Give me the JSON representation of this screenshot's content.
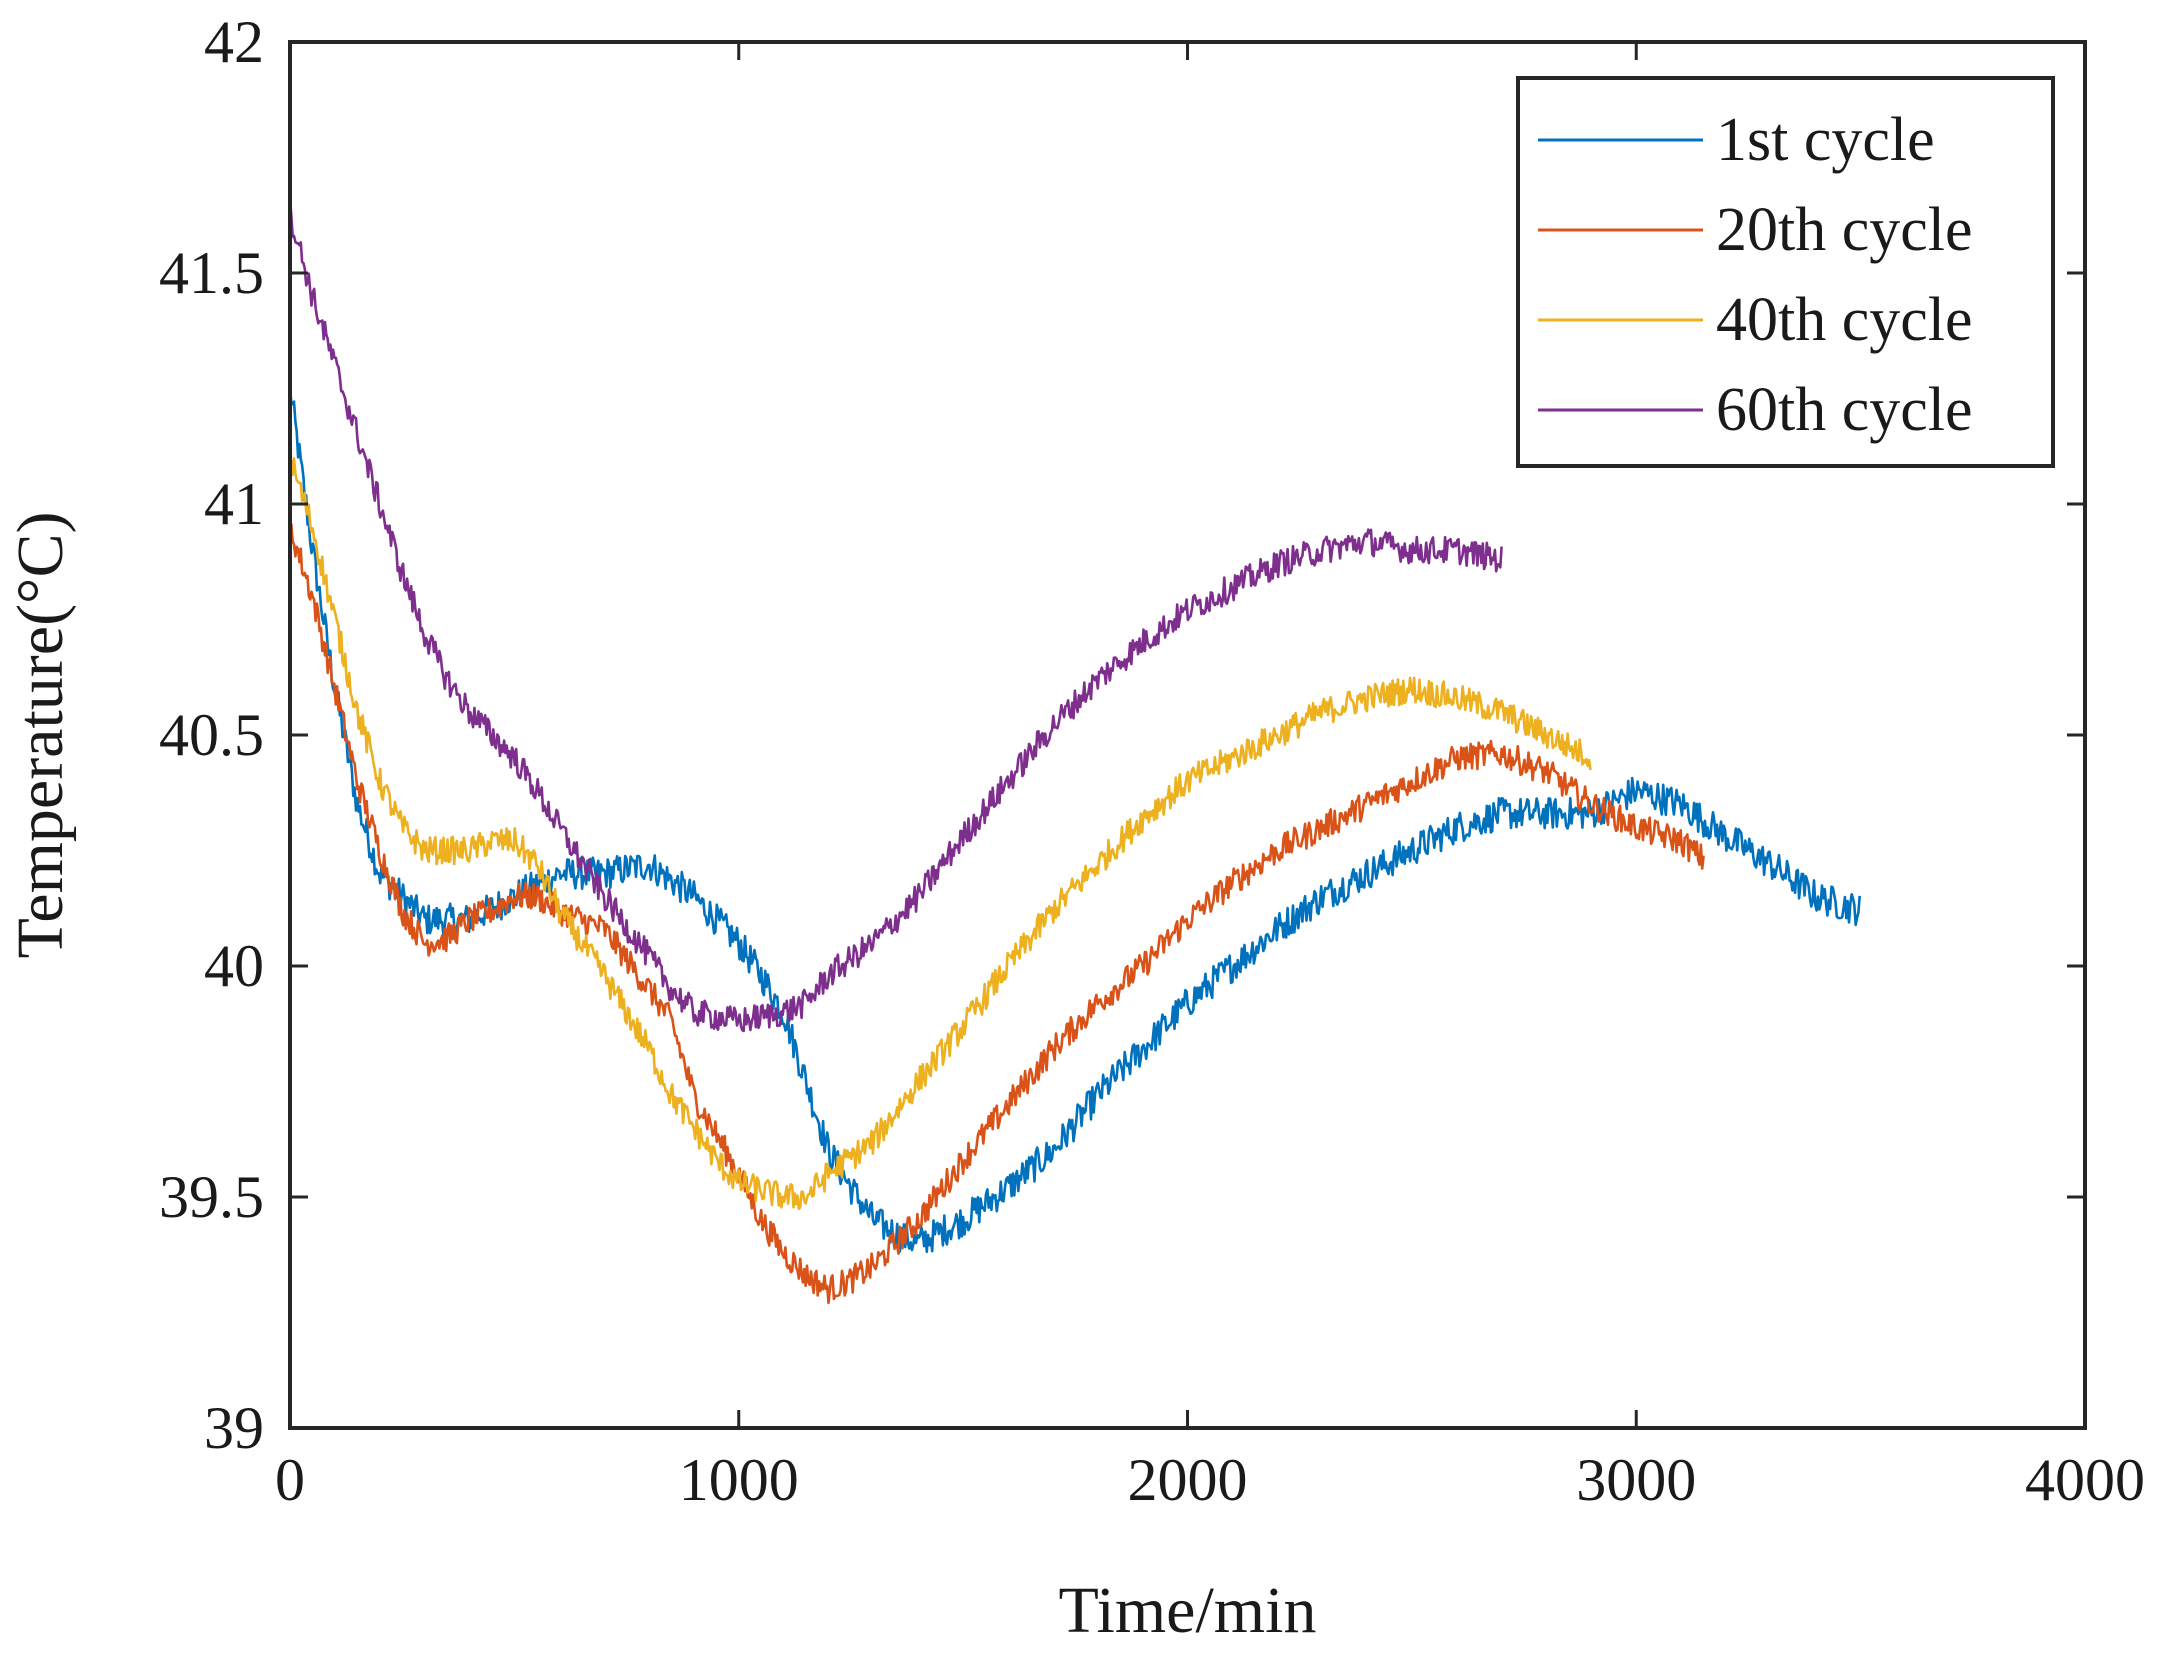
{
  "chart_data": {
    "type": "line",
    "title": "",
    "xlabel": "Time/min",
    "ylabel": "Temperature(°C)",
    "xlim": [
      0,
      4000
    ],
    "ylim": [
      39,
      42
    ],
    "xticks": [
      0,
      1000,
      2000,
      3000,
      4000
    ],
    "yticks": [
      39,
      39.5,
      40,
      40.5,
      41,
      41.5,
      42
    ],
    "xtick_labels": [
      "0",
      "1000",
      "2000",
      "3000",
      "4000"
    ],
    "ytick_labels": [
      "39",
      "39.5",
      "40",
      "40.5",
      "41",
      "41.5",
      "42"
    ],
    "grid": false,
    "legend_position": "top-right",
    "series": [
      {
        "name": "1st cycle",
        "color": "#0072BD",
        "noise": 0.035,
        "points": [
          [
            0,
            41.25
          ],
          [
            50,
            40.9
          ],
          [
            100,
            40.6
          ],
          [
            150,
            40.35
          ],
          [
            200,
            40.2
          ],
          [
            300,
            40.1
          ],
          [
            400,
            40.1
          ],
          [
            500,
            40.15
          ],
          [
            600,
            40.2
          ],
          [
            700,
            40.2
          ],
          [
            800,
            40.22
          ],
          [
            900,
            40.15
          ],
          [
            1000,
            40.05
          ],
          [
            1050,
            39.98
          ],
          [
            1100,
            39.9
          ],
          [
            1150,
            39.75
          ],
          [
            1200,
            39.6
          ],
          [
            1250,
            39.52
          ],
          [
            1300,
            39.45
          ],
          [
            1350,
            39.42
          ],
          [
            1400,
            39.4
          ],
          [
            1500,
            39.45
          ],
          [
            1600,
            39.52
          ],
          [
            1700,
            39.6
          ],
          [
            1800,
            39.72
          ],
          [
            1900,
            39.82
          ],
          [
            2000,
            39.92
          ],
          [
            2100,
            40.0
          ],
          [
            2200,
            40.08
          ],
          [
            2300,
            40.15
          ],
          [
            2400,
            40.2
          ],
          [
            2500,
            40.25
          ],
          [
            2600,
            40.3
          ],
          [
            2700,
            40.33
          ],
          [
            2800,
            40.33
          ],
          [
            2900,
            40.33
          ],
          [
            3000,
            40.38
          ],
          [
            3100,
            40.35
          ],
          [
            3200,
            40.28
          ],
          [
            3300,
            40.22
          ],
          [
            3400,
            40.15
          ],
          [
            3500,
            40.12
          ]
        ]
      },
      {
        "name": "20th cycle",
        "color": "#D95319",
        "noise": 0.03,
        "points": [
          [
            0,
            40.95
          ],
          [
            50,
            40.8
          ],
          [
            100,
            40.6
          ],
          [
            150,
            40.4
          ],
          [
            200,
            40.25
          ],
          [
            250,
            40.12
          ],
          [
            300,
            40.05
          ],
          [
            350,
            40.06
          ],
          [
            400,
            40.1
          ],
          [
            450,
            40.12
          ],
          [
            500,
            40.15
          ],
          [
            550,
            40.15
          ],
          [
            600,
            40.12
          ],
          [
            700,
            40.08
          ],
          [
            800,
            39.95
          ],
          [
            850,
            39.88
          ],
          [
            900,
            39.72
          ],
          [
            1000,
            39.55
          ],
          [
            1050,
            39.45
          ],
          [
            1100,
            39.38
          ],
          [
            1150,
            39.33
          ],
          [
            1200,
            39.3
          ],
          [
            1250,
            39.32
          ],
          [
            1300,
            39.35
          ],
          [
            1400,
            39.45
          ],
          [
            1500,
            39.58
          ],
          [
            1600,
            39.7
          ],
          [
            1700,
            39.82
          ],
          [
            1800,
            39.92
          ],
          [
            1900,
            40.0
          ],
          [
            2000,
            40.1
          ],
          [
            2100,
            40.18
          ],
          [
            2200,
            40.25
          ],
          [
            2300,
            40.3
          ],
          [
            2400,
            40.35
          ],
          [
            2500,
            40.4
          ],
          [
            2600,
            40.45
          ],
          [
            2700,
            40.46
          ],
          [
            2800,
            40.42
          ],
          [
            2900,
            40.35
          ],
          [
            3000,
            40.3
          ],
          [
            3100,
            40.27
          ],
          [
            3150,
            40.23
          ]
        ]
      },
      {
        "name": "40th cycle",
        "color": "#EDB120",
        "noise": 0.03,
        "points": [
          [
            0,
            41.1
          ],
          [
            50,
            40.95
          ],
          [
            100,
            40.75
          ],
          [
            150,
            40.55
          ],
          [
            200,
            40.4
          ],
          [
            250,
            40.3
          ],
          [
            300,
            40.25
          ],
          [
            400,
            40.25
          ],
          [
            450,
            40.27
          ],
          [
            500,
            40.27
          ],
          [
            550,
            40.22
          ],
          [
            600,
            40.12
          ],
          [
            700,
            39.98
          ],
          [
            800,
            39.82
          ],
          [
            850,
            39.72
          ],
          [
            900,
            39.65
          ],
          [
            950,
            39.58
          ],
          [
            1000,
            39.53
          ],
          [
            1100,
            39.5
          ],
          [
            1150,
            39.5
          ],
          [
            1200,
            39.55
          ],
          [
            1300,
            39.62
          ],
          [
            1400,
            39.75
          ],
          [
            1500,
            39.87
          ],
          [
            1600,
            40.0
          ],
          [
            1700,
            40.12
          ],
          [
            1800,
            40.22
          ],
          [
            1900,
            40.32
          ],
          [
            2000,
            40.4
          ],
          [
            2100,
            40.45
          ],
          [
            2200,
            40.5
          ],
          [
            2300,
            40.55
          ],
          [
            2400,
            40.58
          ],
          [
            2500,
            40.6
          ],
          [
            2600,
            40.58
          ],
          [
            2700,
            40.55
          ],
          [
            2800,
            40.5
          ],
          [
            2900,
            40.45
          ]
        ]
      },
      {
        "name": "60th cycle",
        "color": "#7E2F8E",
        "noise": 0.03,
        "points": [
          [
            0,
            41.63
          ],
          [
            50,
            41.45
          ],
          [
            100,
            41.3
          ],
          [
            150,
            41.15
          ],
          [
            200,
            41.0
          ],
          [
            250,
            40.85
          ],
          [
            300,
            40.72
          ],
          [
            350,
            40.62
          ],
          [
            400,
            40.55
          ],
          [
            450,
            40.5
          ],
          [
            500,
            40.45
          ],
          [
            550,
            40.38
          ],
          [
            600,
            40.3
          ],
          [
            700,
            40.15
          ],
          [
            800,
            40.02
          ],
          [
            850,
            39.95
          ],
          [
            900,
            39.9
          ],
          [
            1000,
            39.88
          ],
          [
            1100,
            39.9
          ],
          [
            1150,
            39.92
          ],
          [
            1200,
            39.98
          ],
          [
            1300,
            40.05
          ],
          [
            1400,
            40.15
          ],
          [
            1500,
            40.28
          ],
          [
            1600,
            40.4
          ],
          [
            1700,
            40.52
          ],
          [
            1800,
            40.62
          ],
          [
            1900,
            40.7
          ],
          [
            2000,
            40.77
          ],
          [
            2100,
            40.82
          ],
          [
            2200,
            40.87
          ],
          [
            2300,
            40.9
          ],
          [
            2400,
            40.92
          ],
          [
            2500,
            40.9
          ],
          [
            2600,
            40.9
          ],
          [
            2700,
            40.88
          ]
        ]
      }
    ]
  }
}
